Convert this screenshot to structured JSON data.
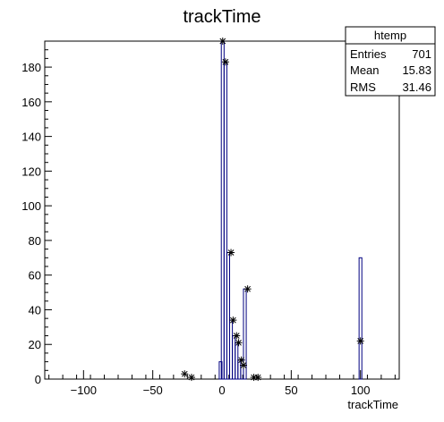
{
  "chart_data": {
    "type": "histogram",
    "title": "trackTime",
    "xlabel": "trackTime",
    "ylabel": "",
    "xlim": [
      -128,
      128
    ],
    "ylim": [
      0,
      195
    ],
    "x_ticks": [
      -100,
      -50,
      0,
      50,
      100
    ],
    "y_ticks": [
      0,
      20,
      40,
      60,
      80,
      100,
      120,
      140,
      160,
      180
    ],
    "grid": false,
    "line_color": "#000080",
    "bins": [
      {
        "x": -1.0,
        "y": 10
      },
      {
        "x": 0.5,
        "y": 195
      },
      {
        "x": 2.5,
        "y": 183
      },
      {
        "x": 4.5,
        "y": 73
      },
      {
        "x": 6.5,
        "y": 34
      },
      {
        "x": 8.5,
        "y": 25
      },
      {
        "x": 10.5,
        "y": 21
      },
      {
        "x": 12.5,
        "y": 11
      },
      {
        "x": 14.5,
        "y": 8
      },
      {
        "x": 16.5,
        "y": 52
      },
      {
        "x": 100.0,
        "y": 70
      }
    ],
    "markers": [
      {
        "x": -27,
        "y": 3
      },
      {
        "x": -22,
        "y": 1
      },
      {
        "x": 0.5,
        "y": 195
      },
      {
        "x": 2.5,
        "y": 183
      },
      {
        "x": 6.5,
        "y": 73
      },
      {
        "x": 8.0,
        "y": 34
      },
      {
        "x": 10.5,
        "y": 25
      },
      {
        "x": 12.0,
        "y": 21
      },
      {
        "x": 14.0,
        "y": 11
      },
      {
        "x": 15.5,
        "y": 8
      },
      {
        "x": 18.5,
        "y": 52
      },
      {
        "x": 23,
        "y": 1
      },
      {
        "x": 26,
        "y": 1
      },
      {
        "x": 100.0,
        "y": 22
      }
    ],
    "stats": {
      "title": "htemp",
      "rows": [
        {
          "label": "Entries",
          "value": "701"
        },
        {
          "label": "Mean",
          "value": "15.83"
        },
        {
          "label": "RMS",
          "value": "31.46"
        }
      ]
    }
  }
}
